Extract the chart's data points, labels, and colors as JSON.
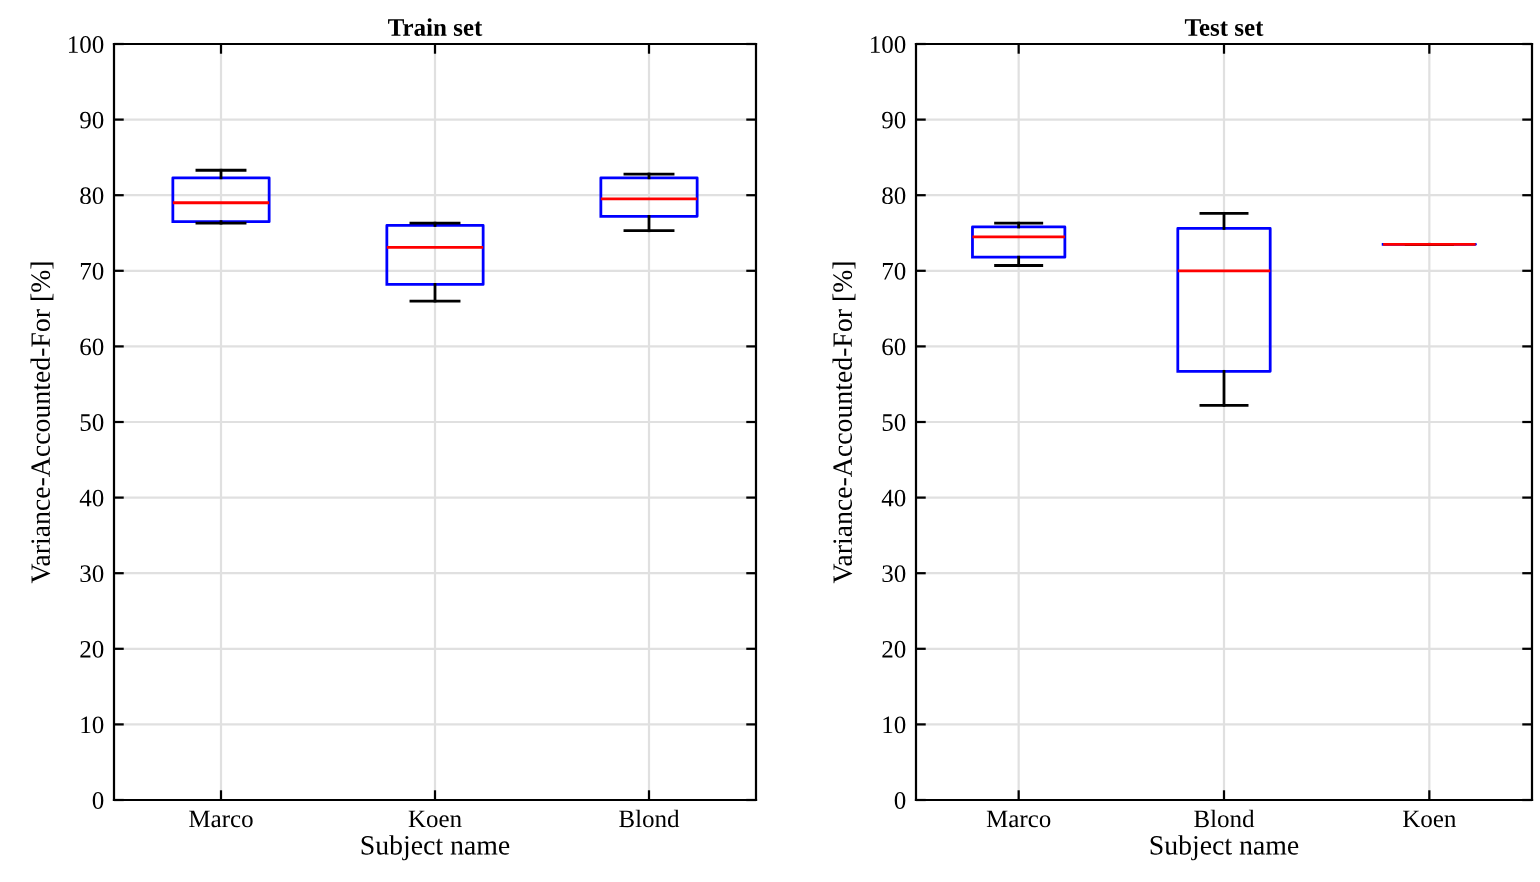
{
  "chart_data": [
    {
      "type": "box",
      "title": "Train set",
      "xlabel": "Subject name",
      "ylabel": "Variance-Accounted-For [%]",
      "categories": [
        "Marco",
        "Koen",
        "Blond"
      ],
      "ylim": [
        0,
        100
      ],
      "yticks": [
        0,
        10,
        20,
        30,
        40,
        50,
        60,
        70,
        80,
        90,
        100
      ],
      "grid": true,
      "color": "#0000ff",
      "boxes": [
        {
          "low": 76.3,
          "q1": 76.5,
          "median": 79,
          "q3": 82.3,
          "high": 83.3
        },
        {
          "low": 66,
          "q1": 68.2,
          "median": 73.1,
          "q3": 76,
          "high": 76.3
        },
        {
          "low": 75.3,
          "q1": 77.2,
          "median": 79.5,
          "q3": 82.3,
          "high": 82.8
        }
      ]
    },
    {
      "type": "box",
      "title": "Test set",
      "xlabel": "Subject name",
      "ylabel": "Variance-Accounted-For [%]",
      "categories": [
        "Marco",
        "Blond",
        "Koen"
      ],
      "ylim": [
        0,
        100
      ],
      "yticks": [
        0,
        10,
        20,
        30,
        40,
        50,
        60,
        70,
        80,
        90,
        100
      ],
      "grid": true,
      "color": "#0000ff",
      "boxes": [
        {
          "low": 70.7,
          "q1": 71.8,
          "median": 74.5,
          "q3": 75.8,
          "high": 76.3
        },
        {
          "low": 52.2,
          "q1": 56.7,
          "median": 70,
          "q3": 75.6,
          "high": 77.6
        },
        {
          "low": 73.5,
          "q1": 73.5,
          "median": 73.5,
          "q3": 73.5,
          "high": 73.5
        }
      ]
    }
  ]
}
